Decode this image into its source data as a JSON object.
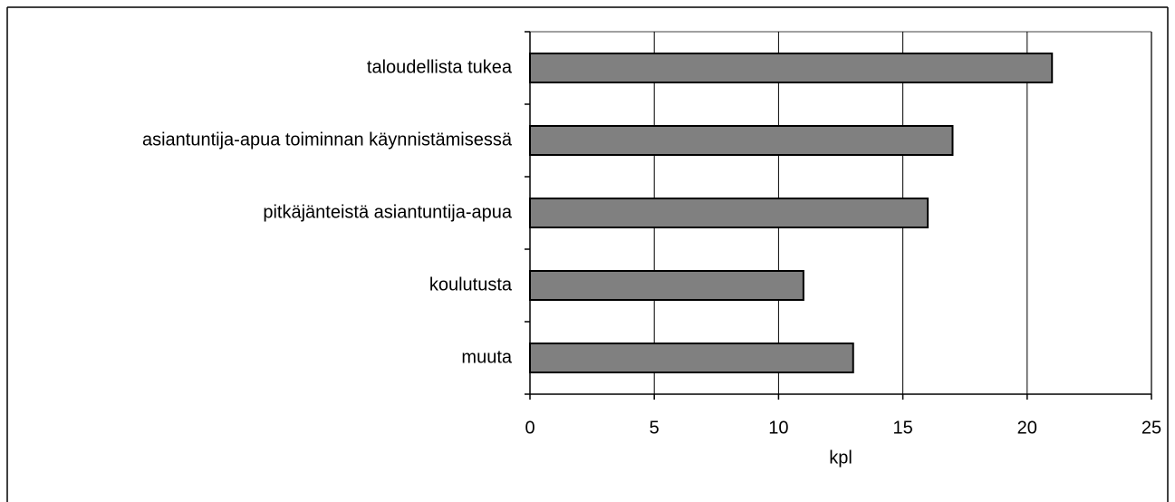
{
  "chart_data": {
    "type": "bar",
    "orientation": "horizontal",
    "categories": [
      "taloudellista tukea",
      "asiantuntija-apua toiminnan käynnistämisessä",
      "pitkäjänteistä asiantuntija-apua",
      "koulutusta",
      "muuta"
    ],
    "values": [
      21,
      17,
      16,
      11,
      13
    ],
    "color": "#808080",
    "xlabel": "kpl",
    "xlim": [
      0,
      25
    ],
    "xticks": [
      0,
      5,
      10,
      15,
      20,
      25
    ],
    "grid": true
  }
}
